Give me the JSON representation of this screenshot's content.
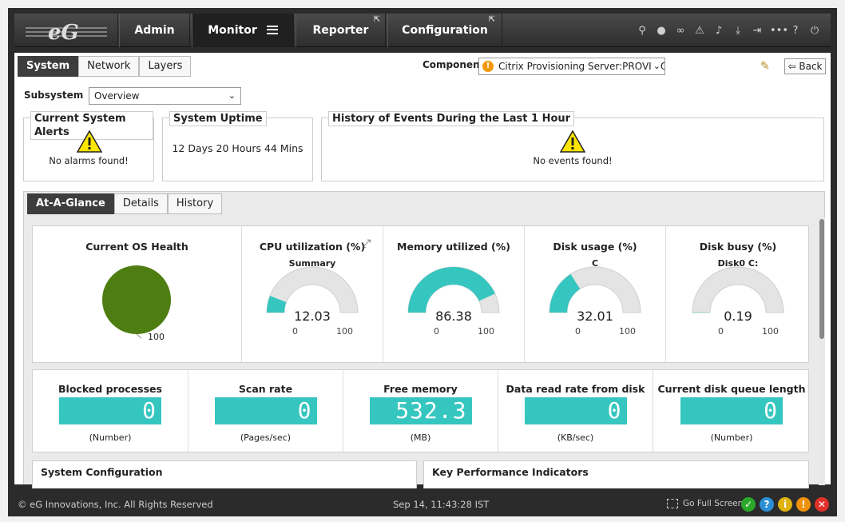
{
  "nav": {
    "tabs": [
      {
        "label": "Admin"
      },
      {
        "label": "Monitor"
      },
      {
        "label": "Reporter"
      },
      {
        "label": "Configuration"
      }
    ],
    "toolbar_icons": [
      "search-icon",
      "user-icon",
      "link-icon",
      "alert-icon",
      "bell-icon",
      "download-icon",
      "login-icon",
      "more-icon",
      "help-icon",
      "power-icon"
    ]
  },
  "subtabs": [
    "System",
    "Network",
    "Layers"
  ],
  "component": {
    "label": "Component",
    "value": "Citrix Provisioning Server:PROVISIO"
  },
  "back_label": "Back",
  "subsystem": {
    "label": "Subsystem",
    "value": "Overview"
  },
  "panels": {
    "alerts": {
      "title": "Current System Alerts",
      "message": "No alarms found!"
    },
    "uptime": {
      "title": "System Uptime",
      "value": "12 Days 20 Hours 44 Mins"
    },
    "events": {
      "title": "History of Events During the Last 1 Hour",
      "message": "No events found!"
    }
  },
  "glance_tabs": [
    "At-A-Glance",
    "Details",
    "History"
  ],
  "gauges": [
    {
      "title": "CPU utilization (%)",
      "sub": "Summary",
      "value": "12.03",
      "min": "0",
      "max": "100",
      "percent": 12.03
    },
    {
      "title": "Memory utilized (%)",
      "sub": "",
      "value": "86.38",
      "min": "0",
      "max": "100",
      "percent": 86.38
    },
    {
      "title": "Disk usage (%)",
      "sub": "C",
      "value": "32.01",
      "min": "0",
      "max": "100",
      "percent": 32.01
    },
    {
      "title": "Disk busy (%)",
      "sub": "Disk0 C:",
      "value": "0.19",
      "min": "0",
      "max": "100",
      "percent": 0.19
    }
  ],
  "os_health": {
    "title": "Current OS Health",
    "label": "100",
    "percent": 100,
    "color": "#4e7e11"
  },
  "lcds": [
    {
      "title": "Blocked processes",
      "value": "0",
      "unit": "(Number)"
    },
    {
      "title": "Scan rate",
      "value": "0",
      "unit": "(Pages/sec)"
    },
    {
      "title": "Free memory",
      "value": "532.3",
      "unit": "(MB)"
    },
    {
      "title": "Data read rate from disk",
      "value": "0",
      "unit": "(KB/sec)"
    },
    {
      "title": "Current disk queue length",
      "value": "0",
      "unit": "(Number)"
    }
  ],
  "bottom_panels": [
    "System Configuration",
    "Key Performance Indicators"
  ],
  "footer": {
    "copyright": "© eG Innovations, Inc. All Rights Reserved",
    "timestamp": "Sep 14, 11:43:28 IST",
    "fullscreen": "Go Full Screen",
    "status_colors": [
      "#2aa82a",
      "#2b8fd6",
      "#e0b20e",
      "#f0910a",
      "#e0302a"
    ]
  },
  "colors": {
    "accent": "#36c6c0",
    "gauge_bg": "#e4e4e4"
  }
}
